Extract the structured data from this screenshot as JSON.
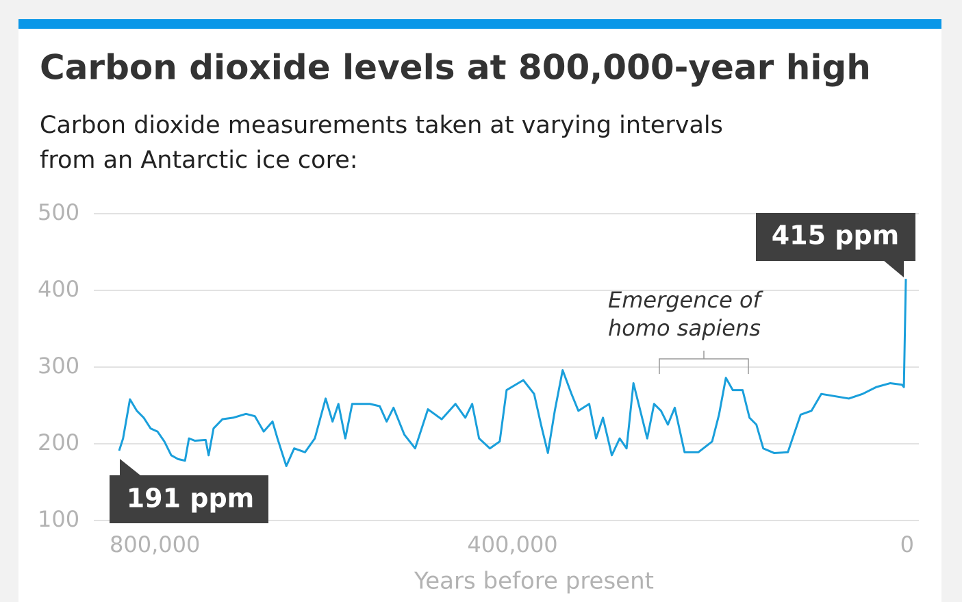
{
  "chart_data": {
    "type": "line",
    "title": "Carbon dioxide levels at 800,000-year high",
    "subtitle": [
      "Carbon dioxide measurements taken at varying intervals",
      "from an Antarctic ice core:"
    ],
    "x_label": "Years before present",
    "color": "#1a9fdb",
    "x": [
      800000,
      796000,
      789000,
      782000,
      775000,
      768000,
      761000,
      754000,
      747000,
      740000,
      733000,
      729000,
      723000,
      712000,
      709000,
      704000,
      695000,
      684000,
      671000,
      662000,
      653000,
      644000,
      639000,
      630000,
      622000,
      611000,
      601000,
      590000,
      583000,
      577000,
      570000,
      563000,
      545000,
      535000,
      528000,
      521000,
      510000,
      499000,
      486000,
      472000,
      458000,
      448000,
      441000,
      434000,
      423000,
      413000,
      406000,
      389000,
      378000,
      371000,
      364000,
      357000,
      349000,
      340000,
      333000,
      322000,
      315000,
      308000,
      299000,
      291000,
      284000,
      277000,
      270000,
      263000,
      256000,
      249000,
      242000,
      235000,
      225000,
      211000,
      197000,
      190000,
      183000,
      176000,
      166000,
      159000,
      152000,
      145000,
      134000,
      120000,
      107000,
      96000,
      86000,
      72000,
      58000,
      44000,
      30000,
      16000,
      4000,
      2000,
      0
    ],
    "values": [
      191,
      207,
      258,
      243,
      234,
      220,
      216,
      203,
      185,
      180,
      178,
      207,
      204,
      205,
      185,
      220,
      232,
      234,
      239,
      236,
      216,
      229,
      207,
      171,
      194,
      189,
      207,
      259,
      229,
      252,
      207,
      252,
      252,
      249,
      229,
      247,
      212,
      194,
      245,
      232,
      252,
      234,
      252,
      207,
      194,
      203,
      270,
      283,
      265,
      225,
      188,
      243,
      296,
      265,
      243,
      252,
      207,
      234,
      185,
      207,
      194,
      279,
      243,
      207,
      252,
      243,
      225,
      247,
      189,
      189,
      203,
      238,
      286,
      270,
      270,
      234,
      225,
      194,
      188,
      189,
      238,
      243,
      265,
      262,
      259,
      265,
      274,
      279,
      277,
      274,
      415
    ],
    "xlim": [
      800000,
      0
    ],
    "xticks": [
      {
        "value": 800000,
        "label": "800,000"
      },
      {
        "value": 400000,
        "label": "400,000"
      },
      0
    ],
    "ylim": [
      100,
      500
    ],
    "yticks": [
      100,
      200,
      300,
      400,
      500
    ],
    "grid": true,
    "annotations": [
      {
        "text": "415 ppm"
      },
      {
        "text": "191 ppm"
      },
      {
        "lines": [
          "Emergence of",
          "homo sapiens"
        ]
      }
    ]
  }
}
